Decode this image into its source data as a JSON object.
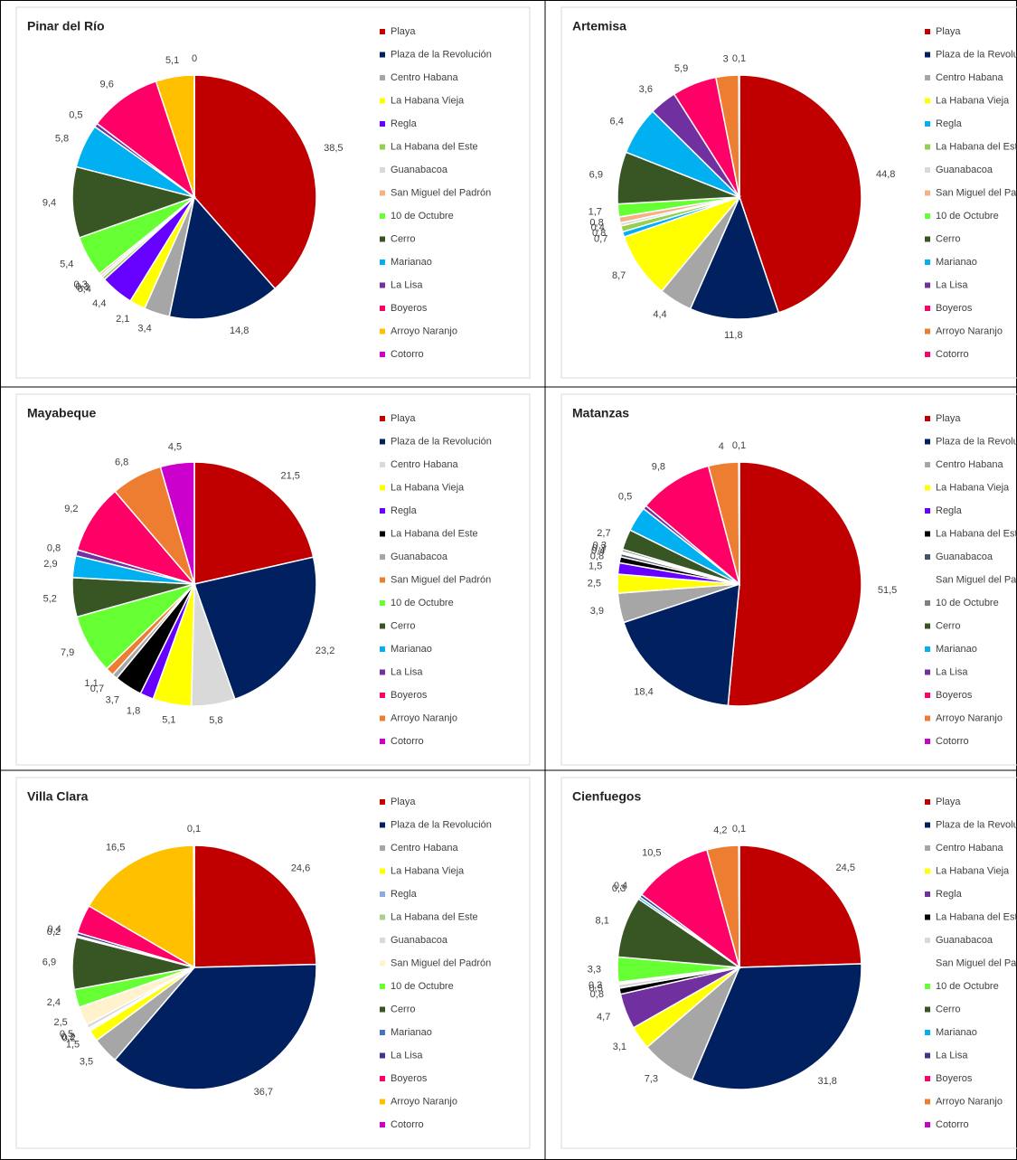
{
  "chart_data": [
    {
      "type": "pie",
      "title": "Pinar del Río",
      "categories": [
        "Playa",
        "Plaza de la Revolución",
        "Centro Habana",
        "La Habana Vieja",
        "Regla",
        "La Habana del Este",
        "Guanabacoa",
        "San Miguel del Padrón",
        "10 de Octubre",
        "Cerro",
        "Marianao",
        "La Lisa",
        "Boyeros",
        "Arroyo Naranjo",
        "Cotorro"
      ],
      "values": [
        38.5,
        14.8,
        3.4,
        2.1,
        4.4,
        0.4,
        0.3,
        0.3,
        5.4,
        9.4,
        5.8,
        0.5,
        9.6,
        5.1,
        0
      ],
      "value_labels": [
        "38,5",
        "14,8",
        "3,4",
        "2,1",
        "4,4",
        "0,4",
        "0,3",
        "0,3",
        "5,4",
        "9,4",
        "5,8",
        "0,5",
        "9,6",
        "5,1",
        "0"
      ],
      "colors": [
        "#c00000",
        "#002060",
        "#a6a6a6",
        "#ffff00",
        "#6600ff",
        "#92d050",
        "#d9d9d9",
        "#f4b183",
        "#66ff33",
        "#375623",
        "#00b0f0",
        "#7030a0",
        "#ff0066",
        "#ffc000",
        "#cc00cc"
      ]
    },
    {
      "type": "pie",
      "title": "Artemisa",
      "categories": [
        "Playa",
        "Plaza de la Revolución",
        "Centro Habana",
        "La Habana Vieja",
        "Regla",
        "La Habana del Este",
        "Guanabacoa",
        "San Miguel del Padrón",
        "10 de Octubre",
        "Cerro",
        "Marianao",
        "La Lisa",
        "Boyeros",
        "Arroyo Naranjo",
        "Cotorro"
      ],
      "values": [
        44.8,
        11.8,
        4.4,
        8.7,
        0.7,
        0.8,
        0.4,
        0.8,
        1.7,
        6.9,
        6.4,
        3.6,
        5.9,
        3,
        0.1
      ],
      "value_labels": [
        "44,8",
        "11,8",
        "4,4",
        "8,7",
        "0,7",
        "0,8",
        "0,4",
        "0,8",
        "1,7",
        "6,9",
        "6,4",
        "3,6",
        "5,9",
        "3",
        "0,1"
      ],
      "colors": [
        "#c00000",
        "#002060",
        "#a6a6a6",
        "#ffff00",
        "#00b0f0",
        "#92d050",
        "#d9d9d9",
        "#f4b183",
        "#66ff33",
        "#375623",
        "#00b0f0",
        "#7030a0",
        "#ff0066",
        "#ed7d31",
        "#ff0066"
      ]
    },
    {
      "type": "pie",
      "title": "Mayabeque",
      "categories": [
        "Playa",
        "Plaza de la Revolución",
        "Centro Habana",
        "La Habana Vieja",
        "Regla",
        "La Habana del Este",
        "Guanabacoa",
        "San Miguel del Padrón",
        "10 de Octubre",
        "Cerro",
        "Marianao",
        "La Lisa",
        "Boyeros",
        "Arroyo Naranjo",
        "Cotorro"
      ],
      "values": [
        21.5,
        23.2,
        5.8,
        5.1,
        1.8,
        3.7,
        0.7,
        1.1,
        7.9,
        5.2,
        2.9,
        0.8,
        9.2,
        6.8,
        4.5
      ],
      "value_labels": [
        "21,5",
        "23,2",
        "5,8",
        "5,1",
        "1,8",
        "3,7",
        "0,7",
        "1,1",
        "7,9",
        "5,2",
        "2,9",
        "0,8",
        "9,2",
        "6,8",
        "4,5"
      ],
      "colors": [
        "#c00000",
        "#002060",
        "#d9d9d9",
        "#ffff00",
        "#6600ff",
        "#000000",
        "#a6a6a6",
        "#ed7d31",
        "#66ff33",
        "#375623",
        "#00b0f0",
        "#7030a0",
        "#ff0066",
        "#ed7d31",
        "#cc00cc"
      ]
    },
    {
      "type": "pie",
      "title": "Matanzas",
      "categories": [
        "Playa",
        "Plaza de la Revolución",
        "Centro Habana",
        "La Habana Vieja",
        "Regla",
        "La Habana del Este",
        "Guanabacoa",
        "San Miguel del Padrón",
        "10 de Octubre",
        "Cerro",
        "Marianao",
        "La Lisa",
        "Boyeros",
        "Arroyo Naranjo",
        "Cotorro"
      ],
      "values": [
        51.5,
        18.4,
        3.9,
        2.5,
        1.5,
        0.8,
        0.4,
        0.3,
        0.3,
        2.7,
        3.3,
        0.5,
        9.8,
        4,
        0.1
      ],
      "value_labels": [
        "51,5",
        "18,4",
        "3,9",
        "2,5",
        "1,5",
        "0,8",
        "0,4",
        "0,3",
        "0,3",
        "2,7",
        null,
        "0,5",
        "9,8",
        "4",
        "0,1"
      ],
      "colors": [
        "#c00000",
        "#002060",
        "#a6a6a6",
        "#ffff00",
        "#6600ff",
        "#000000",
        "#44546a",
        "#ffffff",
        "#808080",
        "#375623",
        "#00b0f0",
        "#7030a0",
        "#ff0066",
        "#ed7d31",
        "#cc00cc"
      ]
    },
    {
      "type": "pie",
      "title": "Villa Clara",
      "categories": [
        "Playa",
        "Plaza de la Revolución",
        "Centro Habana",
        "La Habana Vieja",
        "Regla",
        "La Habana del Este",
        "Guanabacoa",
        "San Miguel del Padrón",
        "10 de Octubre",
        "Cerro",
        "Marianao",
        "La Lisa",
        "Boyeros",
        "Arroyo Naranjo",
        "Cotorro"
      ],
      "values": [
        24.6,
        36.7,
        3.5,
        1.5,
        0.2,
        0.2,
        0.5,
        2.5,
        2.4,
        6.9,
        0.2,
        0.4,
        3.8,
        16.5,
        0.1
      ],
      "value_labels": [
        "24,6",
        "36,7",
        "3,5",
        "1,5",
        "0,2",
        "0,2",
        "0,5",
        "2,5",
        "2,4",
        "6,9",
        "0,2",
        "0,4",
        null,
        "16,5",
        "0,1"
      ],
      "colors": [
        "#c00000",
        "#002060",
        "#a6a6a6",
        "#ffff00",
        "#8ea9db",
        "#a9d08e",
        "#d9d9d9",
        "#fff2cc",
        "#66ff33",
        "#375623",
        "#4472c4",
        "#3a3a8c",
        "#ff0066",
        "#ffc000",
        "#cc00cc"
      ]
    },
    {
      "type": "pie",
      "title": "Cienfuegos",
      "categories": [
        "Playa",
        "Plaza de la Revolución",
        "Centro Habana",
        "La Habana Vieja",
        "Regla",
        "La Habana del Este",
        "Guanabacoa",
        "San Miguel del Padrón",
        "10 de Octubre",
        "Cerro",
        "Marianao",
        "La Lisa",
        "Boyeros",
        "Arroyo Naranjo",
        "Cotorro"
      ],
      "values": [
        24.5,
        31.8,
        7.3,
        3.1,
        4.7,
        0.8,
        0.5,
        0.3,
        3.3,
        8.1,
        0.3,
        0.4,
        10.5,
        4.2,
        0.1
      ],
      "value_labels": [
        "24,5",
        "31,8",
        "7,3",
        "3,1",
        "4,7",
        "0,8",
        "0,5",
        "0,3",
        "3,3",
        "8,1",
        "0,3",
        "0,4",
        "10,5",
        "4,2",
        "0,1"
      ],
      "colors": [
        "#c00000",
        "#002060",
        "#a6a6a6",
        "#ffff00",
        "#7030a0",
        "#000000",
        "#d9d9d9",
        "#ffffff",
        "#66ff33",
        "#375623",
        "#00b0f0",
        "#3a3a8c",
        "#ff0066",
        "#ed7d31",
        "#cc00cc"
      ]
    }
  ]
}
